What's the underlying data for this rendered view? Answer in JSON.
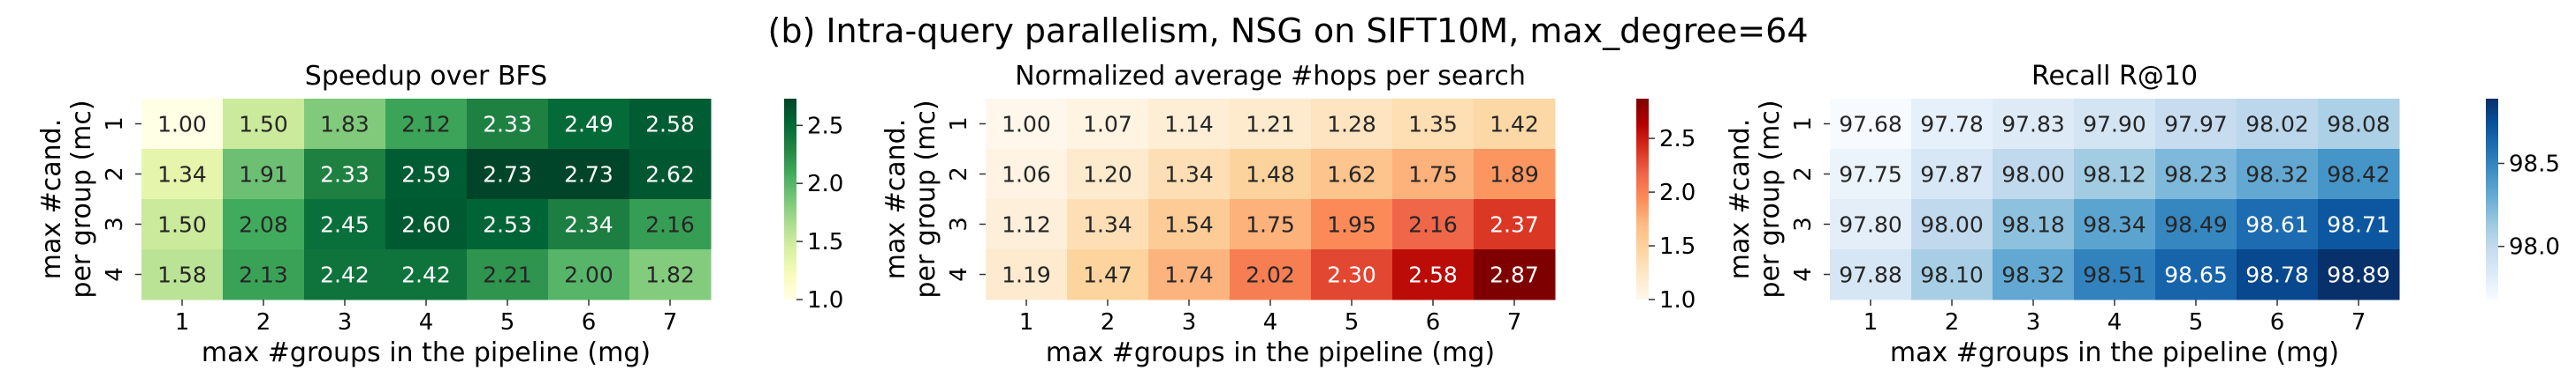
{
  "suptitle": "(b) Intra-query parallelism, NSG on SIFT10M, max_degree=64",
  "colors": {
    "Greens": [
      "#f7fcf5",
      "#e5f5e0",
      "#c7e9c0",
      "#a1d99b",
      "#74c476",
      "#41ab5d",
      "#238b45",
      "#006d2c",
      "#00441b"
    ],
    "YlGn": [
      "#ffffe5",
      "#f7fcb9",
      "#d9f0a3",
      "#addd8e",
      "#78c679",
      "#41ab5d",
      "#238443",
      "#006837",
      "#004529"
    ],
    "OrRd": [
      "#fff7ec",
      "#fee8c8",
      "#fdd49e",
      "#fdbb84",
      "#fc8d59",
      "#ef6548",
      "#d7301f",
      "#b30000",
      "#7f0000"
    ],
    "Blues": [
      "#f7fbff",
      "#deebf7",
      "#c6dbef",
      "#9ecae1",
      "#6baed6",
      "#4292c6",
      "#2171b5",
      "#08519c",
      "#08306b"
    ]
  },
  "chart_data": [
    {
      "type": "heatmap",
      "title": "Speedup over BFS",
      "xlabel": "max #groups in the pipeline (mg)",
      "ylabel": [
        "max #cand.",
        "per group (mc)"
      ],
      "x_categories": [
        "1",
        "2",
        "3",
        "4",
        "5",
        "6",
        "7"
      ],
      "y_categories": [
        "1",
        "2",
        "3",
        "4"
      ],
      "values": [
        [
          1.0,
          1.5,
          1.83,
          2.12,
          2.33,
          2.49,
          2.58
        ],
        [
          1.34,
          1.91,
          2.33,
          2.59,
          2.73,
          2.73,
          2.62
        ],
        [
          1.5,
          2.08,
          2.45,
          2.6,
          2.53,
          2.34,
          2.16
        ],
        [
          1.58,
          2.13,
          2.42,
          2.42,
          2.21,
          2.0,
          1.82
        ]
      ],
      "value_format": "2",
      "colormap": "YlGn",
      "vmin": 1.0,
      "vmax": 2.73,
      "colorbar_ticks": [
        "1.0",
        "1.5",
        "2.0",
        "2.5"
      ]
    },
    {
      "type": "heatmap",
      "title": "Normalized average #hops per search",
      "xlabel": "max #groups in the pipeline (mg)",
      "ylabel": [
        "max #cand.",
        "per group (mc)"
      ],
      "x_categories": [
        "1",
        "2",
        "3",
        "4",
        "5",
        "6",
        "7"
      ],
      "y_categories": [
        "1",
        "2",
        "3",
        "4"
      ],
      "values": [
        [
          1.0,
          1.07,
          1.14,
          1.21,
          1.28,
          1.35,
          1.42
        ],
        [
          1.06,
          1.2,
          1.34,
          1.48,
          1.62,
          1.75,
          1.89
        ],
        [
          1.12,
          1.34,
          1.54,
          1.75,
          1.95,
          2.16,
          2.37
        ],
        [
          1.19,
          1.47,
          1.74,
          2.02,
          2.3,
          2.58,
          2.87
        ]
      ],
      "value_format": "2",
      "colormap": "OrRd",
      "vmin": 1.0,
      "vmax": 2.87,
      "colorbar_ticks": [
        "1.0",
        "1.5",
        "2.0",
        "2.5"
      ]
    },
    {
      "type": "heatmap",
      "title": "Recall R@10",
      "xlabel": "max #groups in the pipeline (mg)",
      "ylabel": [
        "max #cand.",
        "per group (mc)"
      ],
      "x_categories": [
        "1",
        "2",
        "3",
        "4",
        "5",
        "6",
        "7"
      ],
      "y_categories": [
        "1",
        "2",
        "3",
        "4"
      ],
      "values": [
        [
          97.68,
          97.78,
          97.83,
          97.9,
          97.97,
          98.02,
          98.08
        ],
        [
          97.75,
          97.87,
          98.0,
          98.12,
          98.23,
          98.32,
          98.42
        ],
        [
          97.8,
          98.0,
          98.18,
          98.34,
          98.49,
          98.61,
          98.71
        ],
        [
          97.88,
          98.1,
          98.32,
          98.51,
          98.65,
          98.78,
          98.89
        ]
      ],
      "value_format": "2",
      "colormap": "Blues",
      "vmin": 97.68,
      "vmax": 98.89,
      "colorbar_ticks": [
        "98.0",
        "98.5"
      ]
    }
  ]
}
